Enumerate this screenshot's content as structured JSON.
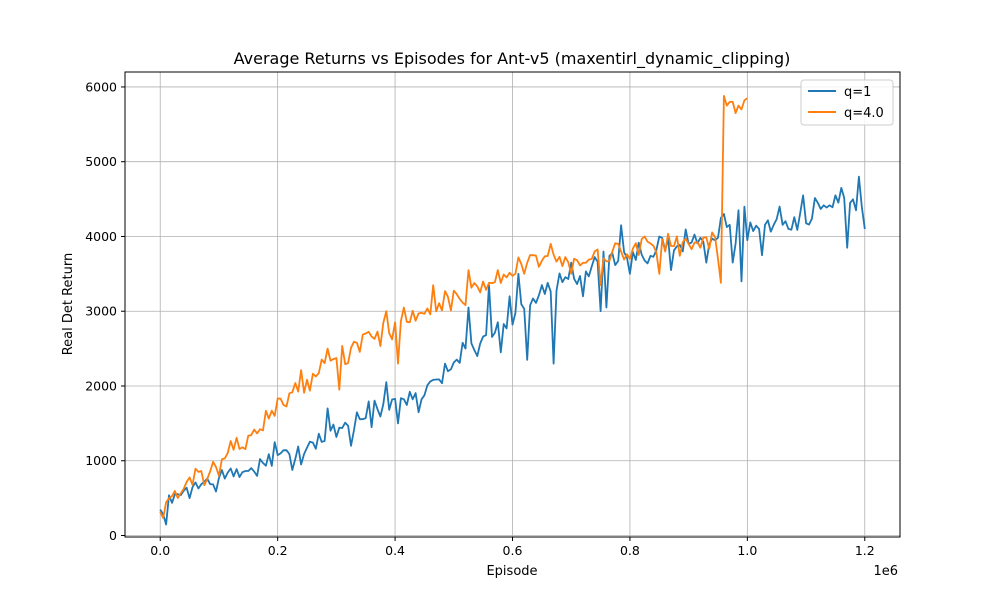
{
  "chart_data": {
    "type": "line",
    "title": "Average Returns vs Episodes for Ant-v5 (maxentirl_dynamic_clipping)",
    "xlabel": "Episode",
    "ylabel": "Real Det Return",
    "x_offset_label": "1e6",
    "xlim": [
      -60000,
      1260000
    ],
    "ylim": [
      -20,
      6200
    ],
    "x_ticks": [
      0,
      200000,
      400000,
      600000,
      800000,
      1000000,
      1200000
    ],
    "x_tick_labels": [
      "0.0",
      "0.2",
      "0.4",
      "0.6",
      "0.8",
      "1.0",
      "1.2"
    ],
    "y_ticks": [
      0,
      1000,
      2000,
      3000,
      4000,
      5000,
      6000
    ],
    "y_tick_labels": [
      "0",
      "1000",
      "2000",
      "3000",
      "4000",
      "5000",
      "6000"
    ],
    "grid": true,
    "legend_position": "top-right",
    "colors": {
      "q1": "#1f77b4",
      "q4": "#ff7f0e"
    },
    "series": [
      {
        "name": "q=1",
        "color": "#1f77b4",
        "x_start": 0,
        "x_step": 5000,
        "segments": [
          {
            "from": 0,
            "to": 0,
            "interp": [
              [
                0,
                320
              ]
            ]
          },
          {
            "from": 5000,
            "to": 5000,
            "interp": [
              [
                5000,
                250
              ]
            ]
          },
          {
            "from": 10000,
            "to": 1200000,
            "interp": [
              [
                10000,
                320
              ],
              [
                40000,
                620
              ],
              [
                80000,
                700
              ],
              [
                120000,
                800
              ],
              [
                160000,
                900
              ],
              [
                200000,
                1000
              ],
              [
                240000,
                1150
              ],
              [
                280000,
                1350
              ],
              [
                320000,
                1500
              ],
              [
                360000,
                1650
              ],
              [
                400000,
                1750
              ],
              [
                440000,
                1900
              ],
              [
                480000,
                2150
              ],
              [
                520000,
                2450
              ],
              [
                560000,
                2700
              ],
              [
                600000,
                2900
              ],
              [
                640000,
                3150
              ],
              [
                680000,
                3450
              ],
              [
                720000,
                3550
              ],
              [
                760000,
                3650
              ],
              [
                800000,
                3750
              ],
              [
                840000,
                3800
              ],
              [
                880000,
                3900
              ],
              [
                920000,
                3950
              ],
              [
                960000,
                4000
              ],
              [
                1000000,
                4080
              ],
              [
                1040000,
                4150
              ],
              [
                1080000,
                4250
              ],
              [
                1120000,
                4350
              ],
              [
                1160000,
                4450
              ],
              [
                1200000,
                4500
              ]
            ]
          }
        ],
        "noise_amp": 170,
        "seed": 7,
        "overrides": [
          [
            195000,
            1250
          ],
          [
            240000,
            950
          ],
          [
            285000,
            1700
          ],
          [
            325000,
            1200
          ],
          [
            385000,
            2050
          ],
          [
            405000,
            1500
          ],
          [
            440000,
            1650
          ],
          [
            485000,
            2300
          ],
          [
            525000,
            3050
          ],
          [
            540000,
            2400
          ],
          [
            560000,
            3350
          ],
          [
            580000,
            2450
          ],
          [
            595000,
            3200
          ],
          [
            610000,
            3500
          ],
          [
            625000,
            2350
          ],
          [
            650000,
            3350
          ],
          [
            670000,
            2300
          ],
          [
            700000,
            3650
          ],
          [
            720000,
            3200
          ],
          [
            750000,
            3000
          ],
          [
            760000,
            3050
          ],
          [
            785000,
            4150
          ],
          [
            800000,
            3500
          ],
          [
            850000,
            4000
          ],
          [
            870000,
            3550
          ],
          [
            900000,
            3900
          ],
          [
            930000,
            3650
          ],
          [
            955000,
            4250
          ],
          [
            960000,
            4300
          ],
          [
            975000,
            3650
          ],
          [
            985000,
            4350
          ],
          [
            990000,
            3400
          ],
          [
            995000,
            4400
          ],
          [
            1000000,
            3950
          ],
          [
            1025000,
            3750
          ],
          [
            1055000,
            4400
          ],
          [
            1095000,
            4550
          ],
          [
            1120000,
            4450
          ],
          [
            1150000,
            4550
          ],
          [
            1160000,
            4650
          ],
          [
            1170000,
            3850
          ],
          [
            1175000,
            4450
          ],
          [
            1185000,
            4350
          ],
          [
            1190000,
            4800
          ],
          [
            1195000,
            4400
          ],
          [
            1200000,
            4100
          ]
        ]
      },
      {
        "name": "q=4.0",
        "color": "#ff7f0e",
        "x_start": 0,
        "x_step": 5000,
        "segments": [
          {
            "from": 0,
            "to": 955000,
            "interp": [
              [
                0,
                330
              ],
              [
                20000,
                520
              ],
              [
                60000,
                780
              ],
              [
                100000,
                900
              ],
              [
                140000,
                1250
              ],
              [
                180000,
                1550
              ],
              [
                220000,
                1900
              ],
              [
                260000,
                2150
              ],
              [
                300000,
                2350
              ],
              [
                340000,
                2550
              ],
              [
                380000,
                2750
              ],
              [
                420000,
                2900
              ],
              [
                460000,
                3050
              ],
              [
                500000,
                3150
              ],
              [
                540000,
                3300
              ],
              [
                580000,
                3450
              ],
              [
                620000,
                3600
              ],
              [
                660000,
                3700
              ],
              [
                700000,
                3720
              ],
              [
                740000,
                3750
              ],
              [
                780000,
                3800
              ],
              [
                820000,
                3850
              ],
              [
                860000,
                3880
              ],
              [
                900000,
                3900
              ],
              [
                940000,
                3950
              ],
              [
                955000,
                3950
              ]
            ]
          },
          {
            "from": 960000,
            "to": 1000000,
            "interp": [
              [
                960000,
                5850
              ],
              [
                1000000,
                5750
              ]
            ]
          }
        ],
        "noise_amp": 150,
        "seed": 13,
        "overrides": [
          [
            195000,
            1600
          ],
          [
            285000,
            2500
          ],
          [
            305000,
            1950
          ],
          [
            385000,
            3000
          ],
          [
            405000,
            2300
          ],
          [
            465000,
            3350
          ],
          [
            525000,
            3550
          ],
          [
            575000,
            3550
          ],
          [
            605000,
            3500
          ],
          [
            635000,
            3750
          ],
          [
            665000,
            3900
          ],
          [
            700000,
            3500
          ],
          [
            740000,
            3800
          ],
          [
            750000,
            3350
          ],
          [
            780000,
            3900
          ],
          [
            800000,
            3700
          ],
          [
            825000,
            4000
          ],
          [
            850000,
            3500
          ],
          [
            900000,
            3900
          ],
          [
            920000,
            3850
          ],
          [
            950000,
            3700
          ],
          [
            955000,
            3380
          ],
          [
            960000,
            5880
          ],
          [
            965000,
            5750
          ],
          [
            970000,
            5800
          ],
          [
            975000,
            5800
          ],
          [
            980000,
            5650
          ],
          [
            985000,
            5750
          ],
          [
            990000,
            5700
          ],
          [
            995000,
            5820
          ],
          [
            1000000,
            5850
          ]
        ]
      }
    ]
  }
}
